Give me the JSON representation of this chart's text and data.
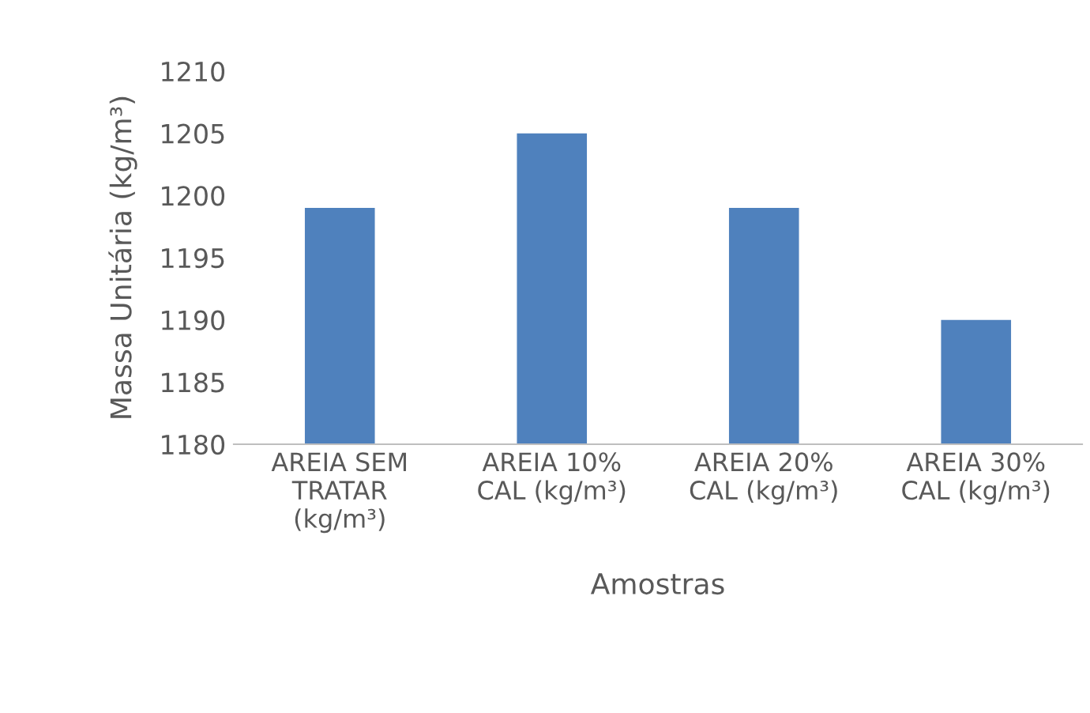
{
  "chart_data": {
    "type": "bar",
    "categories": [
      "AREIA SEM\nTRATAR\n(kg/m³)",
      "AREIA 10%\nCAL (kg/m³)",
      "AREIA 20%\nCAL (kg/m³)",
      "AREIA 30%\nCAL (kg/m³)"
    ],
    "values": [
      1199,
      1205,
      1199,
      1190
    ],
    "color": "#4f81bd",
    "ylim": [
      1180,
      1210
    ],
    "yticks": [
      1180,
      1185,
      1190,
      1195,
      1200,
      1205,
      1210
    ],
    "xlabel": "Amostras",
    "ylabel": "Massa Unitária (kg/m³)",
    "grid": false
  }
}
